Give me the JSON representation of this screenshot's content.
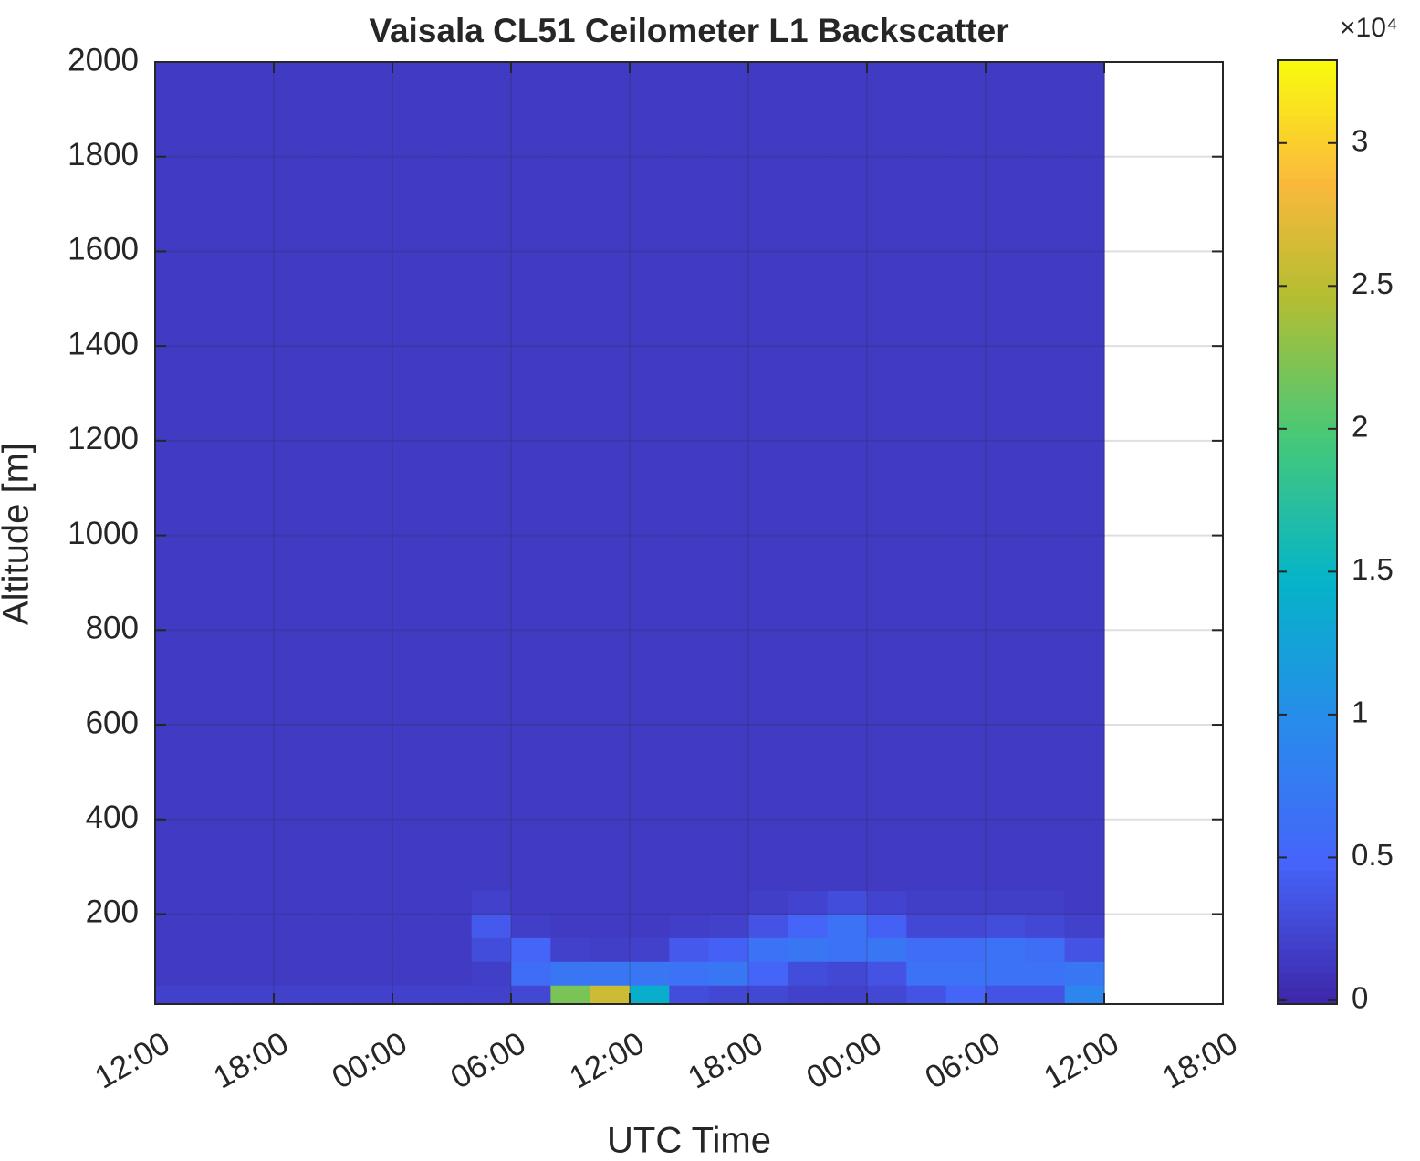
{
  "chart_data": {
    "type": "heatmap",
    "title": "Vaisala CL51 Ceilometer L1 Backscatter",
    "xlabel": "UTC Time",
    "ylabel": "Altitude [m]",
    "colorbar_exponent": "×10⁴",
    "colormap": "parula",
    "grid": true,
    "xlim": [
      0,
      54
    ],
    "xticks": [
      {
        "value": 0,
        "label": "12:00"
      },
      {
        "value": 6,
        "label": "18:00"
      },
      {
        "value": 12,
        "label": "00:00"
      },
      {
        "value": 18,
        "label": "06:00"
      },
      {
        "value": 24,
        "label": "12:00"
      },
      {
        "value": 30,
        "label": "18:00"
      },
      {
        "value": 36,
        "label": "00:00"
      },
      {
        "value": 42,
        "label": "06:00"
      },
      {
        "value": 48,
        "label": "12:00"
      },
      {
        "value": 54,
        "label": "18:00"
      }
    ],
    "ylim": [
      10,
      2000
    ],
    "yticks": [
      200,
      400,
      600,
      800,
      1000,
      1200,
      1400,
      1600,
      1800,
      2000
    ],
    "clim": [
      -130,
      32900
    ],
    "cticks": [
      0,
      {
        "value": 5000,
        "label": "0.5"
      },
      {
        "value": 10000,
        "label": "1"
      },
      {
        "value": 15000,
        "label": "1.5"
      },
      {
        "value": 20000,
        "label": "2"
      },
      {
        "value": 25000,
        "label": "2.5"
      },
      {
        "value": 30000,
        "label": "3"
      }
    ],
    "x_bins": [
      0,
      2,
      4,
      6,
      8,
      10,
      12,
      14,
      16,
      18,
      20,
      22,
      24,
      26,
      28,
      30,
      32,
      34,
      36,
      38,
      40,
      42,
      44,
      46,
      48
    ],
    "y_bins": [
      10,
      50,
      100,
      150,
      200,
      250,
      2000
    ],
    "z": [
      [
        2000,
        2000,
        2000,
        2000,
        2000,
        2000,
        2000,
        2000,
        2000,
        2500,
        22000,
        26000,
        14000,
        3000,
        2500,
        2500,
        2000,
        2000,
        2500,
        3500,
        5000,
        3500,
        3500,
        9000
      ],
      [
        1500,
        1500,
        1500,
        1500,
        1500,
        1500,
        1500,
        1500,
        1800,
        6000,
        7000,
        7000,
        7000,
        6500,
        7000,
        5000,
        3000,
        2500,
        3500,
        6500,
        6500,
        6500,
        6500,
        7000
      ],
      [
        1500,
        1500,
        1500,
        1500,
        1500,
        1500,
        1500,
        1500,
        3000,
        5000,
        2000,
        1800,
        2000,
        4000,
        4500,
        6500,
        7000,
        6500,
        7000,
        6000,
        6000,
        6500,
        6000,
        3500
      ],
      [
        1500,
        1500,
        1500,
        1500,
        1500,
        1500,
        1500,
        1500,
        4000,
        1800,
        1500,
        1500,
        1500,
        1800,
        2000,
        3500,
        5000,
        6500,
        4500,
        2500,
        2500,
        3000,
        2500,
        2000
      ],
      [
        1500,
        1500,
        1500,
        1500,
        1500,
        1500,
        1500,
        1500,
        2000,
        1500,
        1500,
        1500,
        1500,
        1500,
        1500,
        1800,
        2200,
        3000,
        2200,
        1800,
        1800,
        1800,
        1800,
        1500
      ],
      [
        1500,
        1500,
        1500,
        1500,
        1500,
        1500,
        1500,
        1500,
        1500,
        1500,
        1500,
        1500,
        1500,
        1500,
        1500,
        1500,
        1500,
        1500,
        1500,
        1500,
        1500,
        1500,
        1500,
        1500
      ]
    ]
  }
}
